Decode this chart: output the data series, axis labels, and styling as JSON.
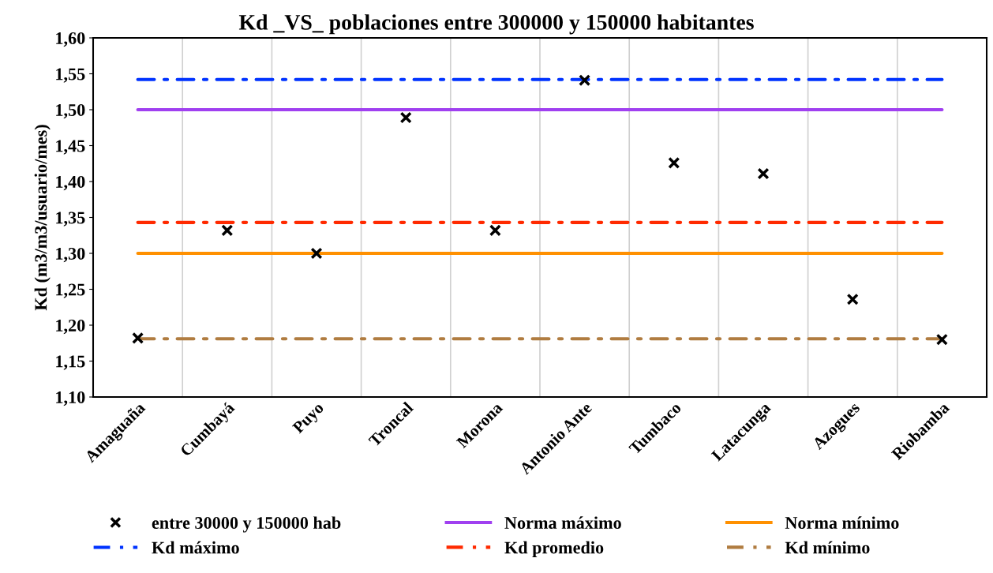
{
  "chart_data": {
    "type": "scatter",
    "title": "Kd _VS_ poblaciones entre 300000 y 150000 habitantes",
    "ylabel": "Kd (m3/m3/usuario/mes)",
    "categories": [
      "Amaguaña",
      "Cumbayá",
      "Puyo",
      "Troncal",
      "Morona",
      "Antonio Ante",
      "Tumbaco",
      "Latacunga",
      "Azogues",
      "Riobamba"
    ],
    "series": [
      {
        "name": "entre 30000 y 150000 hab",
        "color": "#000000",
        "marker": "cross",
        "values": [
          1.182,
          1.332,
          1.3,
          1.489,
          1.332,
          1.541,
          1.426,
          1.411,
          1.236,
          1.18
        ]
      },
      {
        "name": "Norma máximo",
        "type": "line",
        "color": "#a040f0",
        "line_style": "solid",
        "values": [
          1.5,
          1.5,
          1.5,
          1.5,
          1.5,
          1.5,
          1.5,
          1.5,
          1.5,
          1.5
        ]
      },
      {
        "name": "Norma mínimo",
        "type": "line",
        "color": "#ff9000",
        "line_style": "solid",
        "values": [
          1.3,
          1.3,
          1.3,
          1.3,
          1.3,
          1.3,
          1.3,
          1.3,
          1.3,
          1.3
        ]
      },
      {
        "name": "Kd máximo",
        "type": "line",
        "color": "#0033ff",
        "line_style": "dashdot",
        "values": [
          1.542,
          1.542,
          1.542,
          1.542,
          1.542,
          1.542,
          1.542,
          1.542,
          1.542,
          1.542
        ]
      },
      {
        "name": "Kd promedio",
        "type": "line",
        "color": "#ff2a00",
        "line_style": "dashdot",
        "values": [
          1.343,
          1.343,
          1.343,
          1.343,
          1.343,
          1.343,
          1.343,
          1.343,
          1.343,
          1.343
        ]
      },
      {
        "name": "Kd mínimo",
        "type": "line",
        "color": "#b07c40",
        "line_style": "dashdot",
        "values": [
          1.181,
          1.181,
          1.181,
          1.181,
          1.181,
          1.181,
          1.181,
          1.181,
          1.181,
          1.181
        ]
      }
    ],
    "ylim": [
      1.1,
      1.6
    ],
    "yticks": [
      {
        "value": 1.1,
        "label": "1,10"
      },
      {
        "value": 1.15,
        "label": "1,15"
      },
      {
        "value": 1.2,
        "label": "1,20"
      },
      {
        "value": 1.25,
        "label": "1,25"
      },
      {
        "value": 1.3,
        "label": "1,30"
      },
      {
        "value": 1.35,
        "label": "1,35"
      },
      {
        "value": 1.4,
        "label": "1,40"
      },
      {
        "value": 1.45,
        "label": "1,45"
      },
      {
        "value": 1.5,
        "label": "1,50"
      },
      {
        "value": 1.55,
        "label": "1,55"
      },
      {
        "value": 1.6,
        "label": "1,60"
      }
    ],
    "grid": "x",
    "legend": "bottom"
  }
}
